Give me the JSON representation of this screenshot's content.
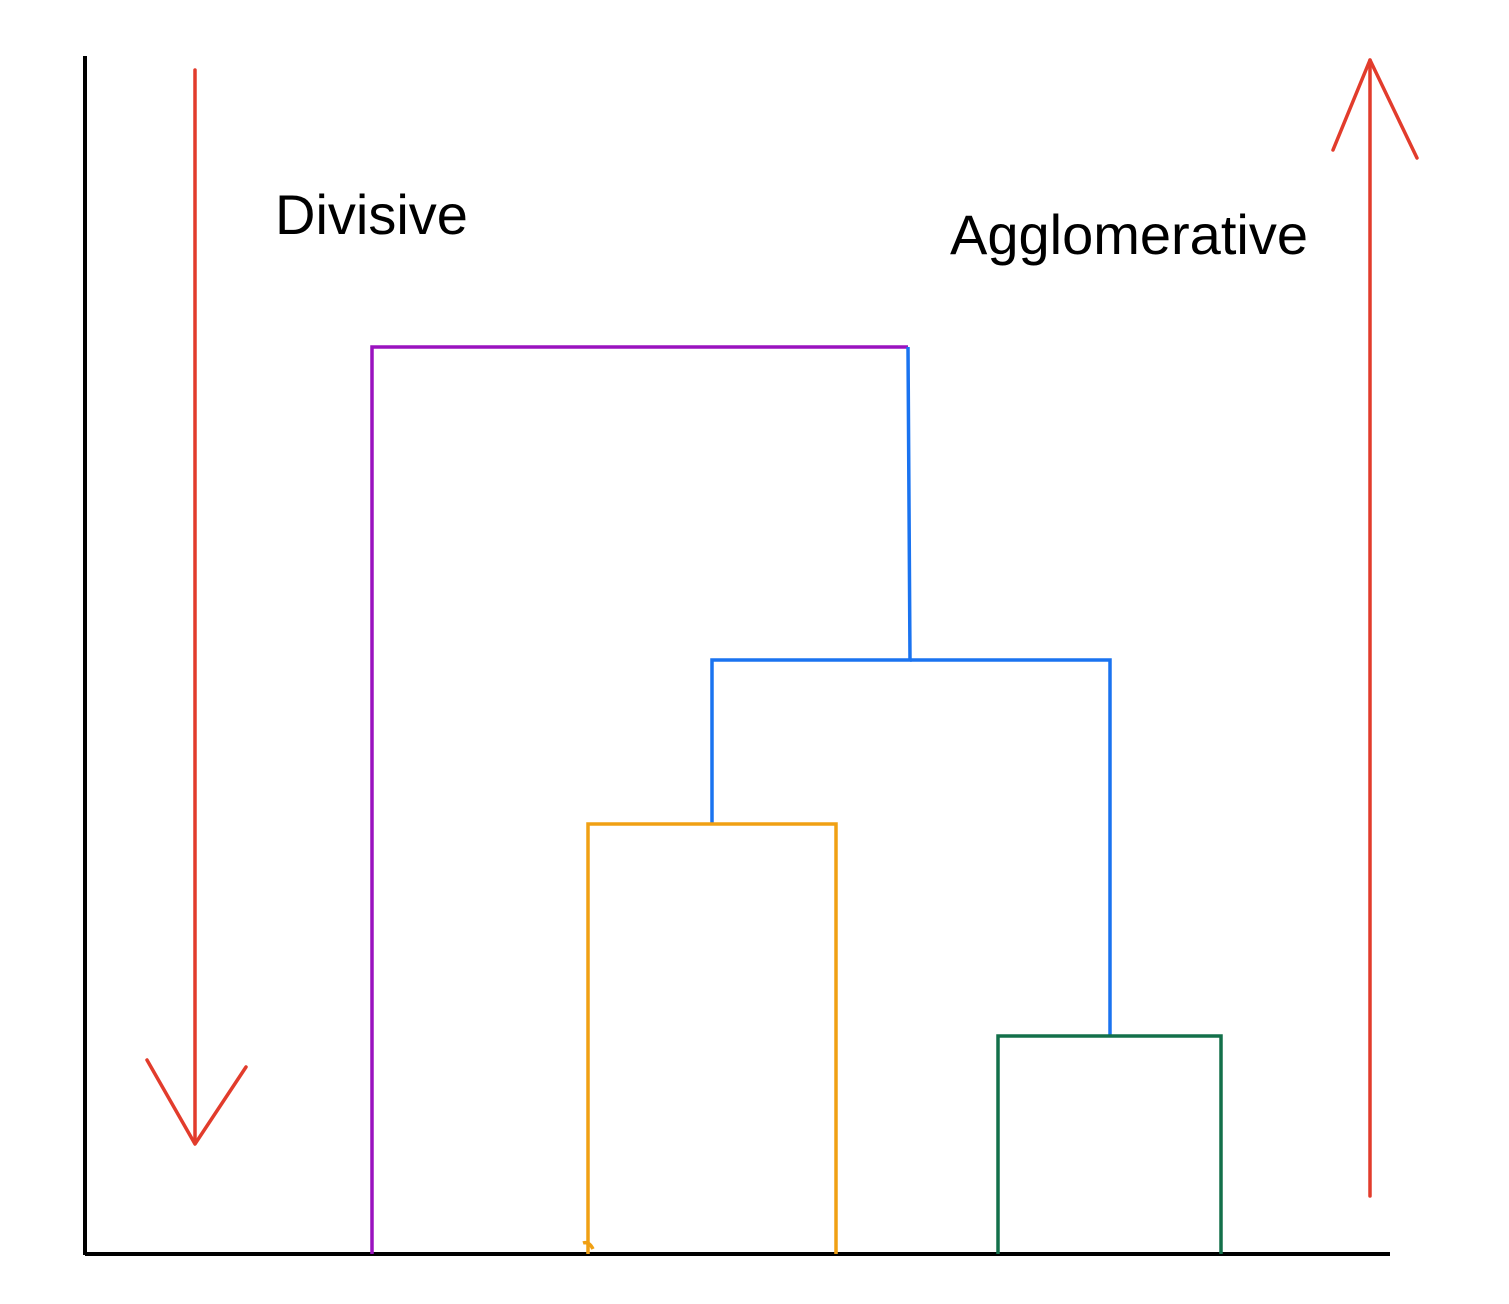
{
  "labels": {
    "top_down": "Divisive",
    "bottom_up": "Agglomerative"
  },
  "colors": {
    "axis": "#000000",
    "arrow": "#e23c2c",
    "root_branch": "#9a12bf",
    "mid_branch": "#1a73f0",
    "left_cluster": "#f0a014",
    "right_cluster": "#13704a"
  },
  "dendrogram": {
    "leaves": 5,
    "merges": [
      {
        "cluster": "right_cluster",
        "children": [
          "leaf-4",
          "leaf-5"
        ]
      },
      {
        "cluster": "left_cluster",
        "children": [
          "leaf-2",
          "leaf-3"
        ]
      },
      {
        "cluster": "mid_branch",
        "children": [
          "left_cluster",
          "right_cluster"
        ]
      },
      {
        "cluster": "root_branch",
        "children": [
          "leaf-1",
          "mid_branch"
        ]
      }
    ]
  }
}
